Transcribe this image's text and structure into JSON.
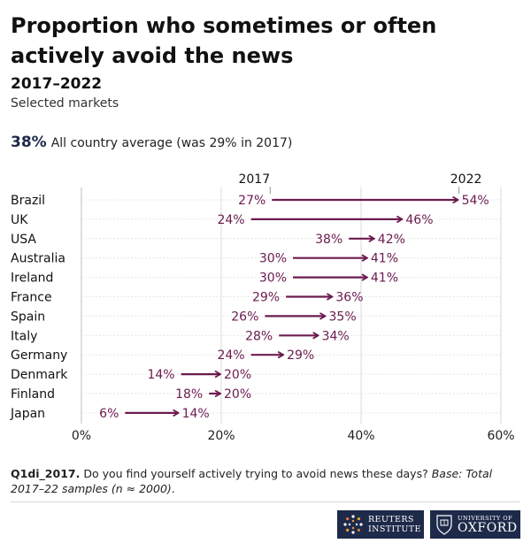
{
  "title": "Proportion who sometimes or often actively avoid the news",
  "subtitle": "2017–2022",
  "markets_note": "Selected markets",
  "average": {
    "value": "38%",
    "text": "All country average (was 29% in 2017)"
  },
  "chart_data": {
    "type": "dumbbell",
    "series_labels": [
      "2017",
      "2022"
    ],
    "categories": [
      "Brazil",
      "UK",
      "USA",
      "Australia",
      "Ireland",
      "France",
      "Spain",
      "Italy",
      "Germany",
      "Denmark",
      "Finland",
      "Japan"
    ],
    "series": [
      {
        "name": "2017",
        "values": [
          27,
          24,
          38,
          30,
          30,
          29,
          26,
          28,
          24,
          14,
          18,
          6
        ]
      },
      {
        "name": "2022",
        "values": [
          54,
          46,
          42,
          41,
          41,
          36,
          35,
          34,
          29,
          20,
          20,
          14
        ]
      }
    ],
    "xlim": [
      0,
      60
    ],
    "xticks": [
      0,
      20,
      40,
      60
    ],
    "value_suffix": "%",
    "grid": true
  },
  "colors": {
    "accent": "#6b1b4f",
    "navy": "#1e2a4a",
    "grid": "#d9d9d9"
  },
  "footnote": {
    "code": "Q1di_2017.",
    "question": "Do you find yourself actively trying to avoid news these days?",
    "base": "Base: Total 2017–22 samples (n ≈ 2000)",
    "end": "."
  },
  "logos": {
    "reuters_line1": "REUTERS",
    "reuters_line2": "INSTITUTE",
    "oxford_line1": "UNIVERSITY OF",
    "oxford_line2": "OXFORD"
  }
}
